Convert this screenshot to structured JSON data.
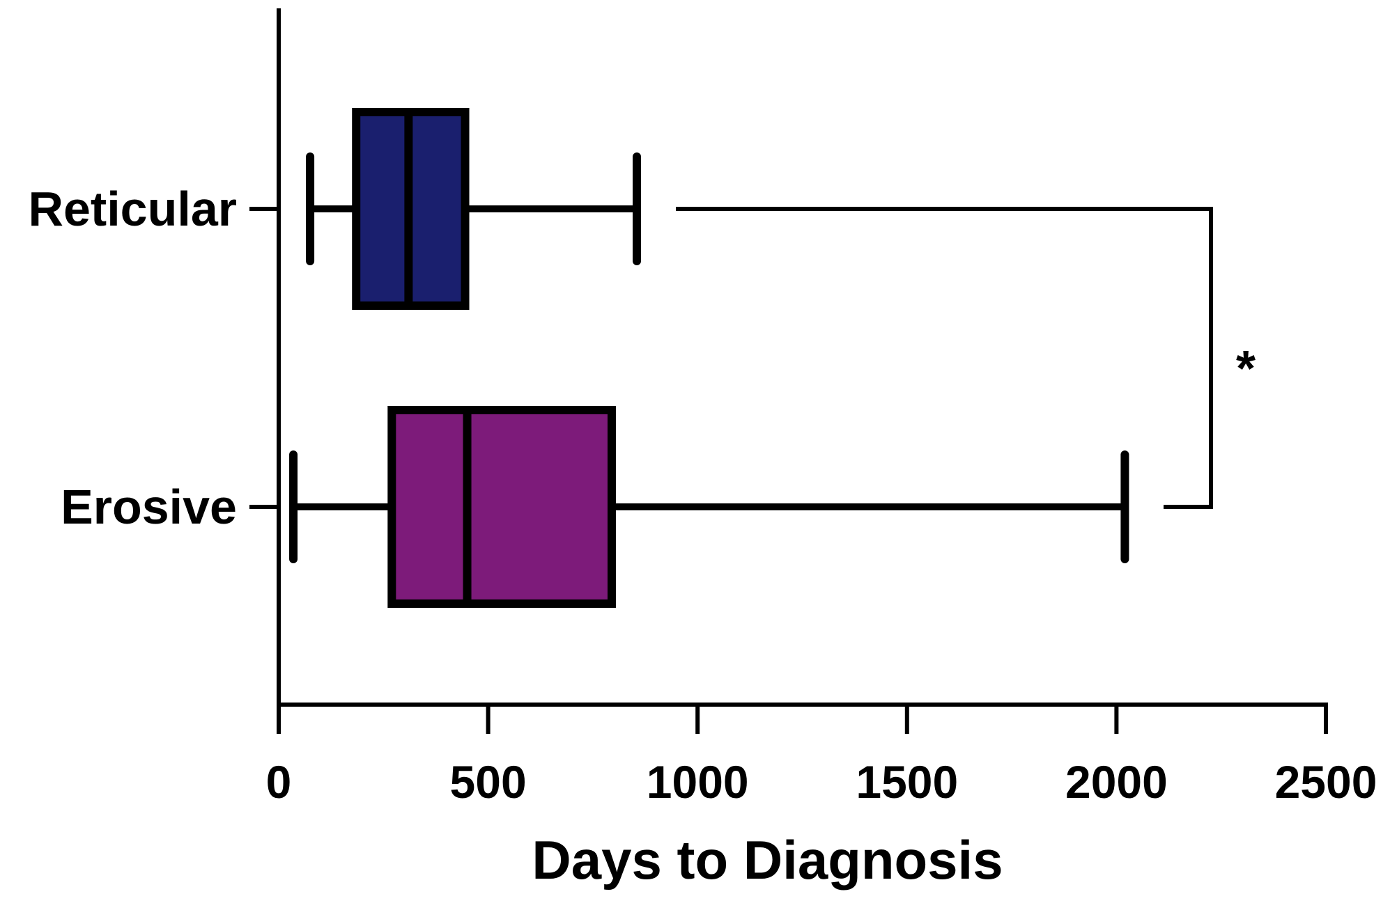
{
  "chart_data": {
    "type": "box",
    "orientation": "horizontal",
    "xlabel": "Days to Diagnosis",
    "xlim": [
      0,
      2500
    ],
    "xticks": [
      0,
      500,
      1000,
      1500,
      2000,
      2500
    ],
    "xtick_labels": [
      "0",
      "500",
      "1000",
      "1500",
      "2000",
      "2500"
    ],
    "categories": [
      "Reticular",
      "Erosive"
    ],
    "series": [
      {
        "category": "Reticular",
        "min": 75,
        "q1": 185,
        "median": 310,
        "q3": 445,
        "max": 855,
        "color": "#1a1f6e"
      },
      {
        "category": "Erosive",
        "min": 35,
        "q1": 270,
        "median": 450,
        "q3": 795,
        "max": 2020,
        "color": "#7d1b7a"
      }
    ],
    "annotations": [
      {
        "type": "significance",
        "between": [
          "Reticular",
          "Erosive"
        ],
        "label": "*"
      }
    ],
    "grid": false,
    "legend": "none"
  }
}
